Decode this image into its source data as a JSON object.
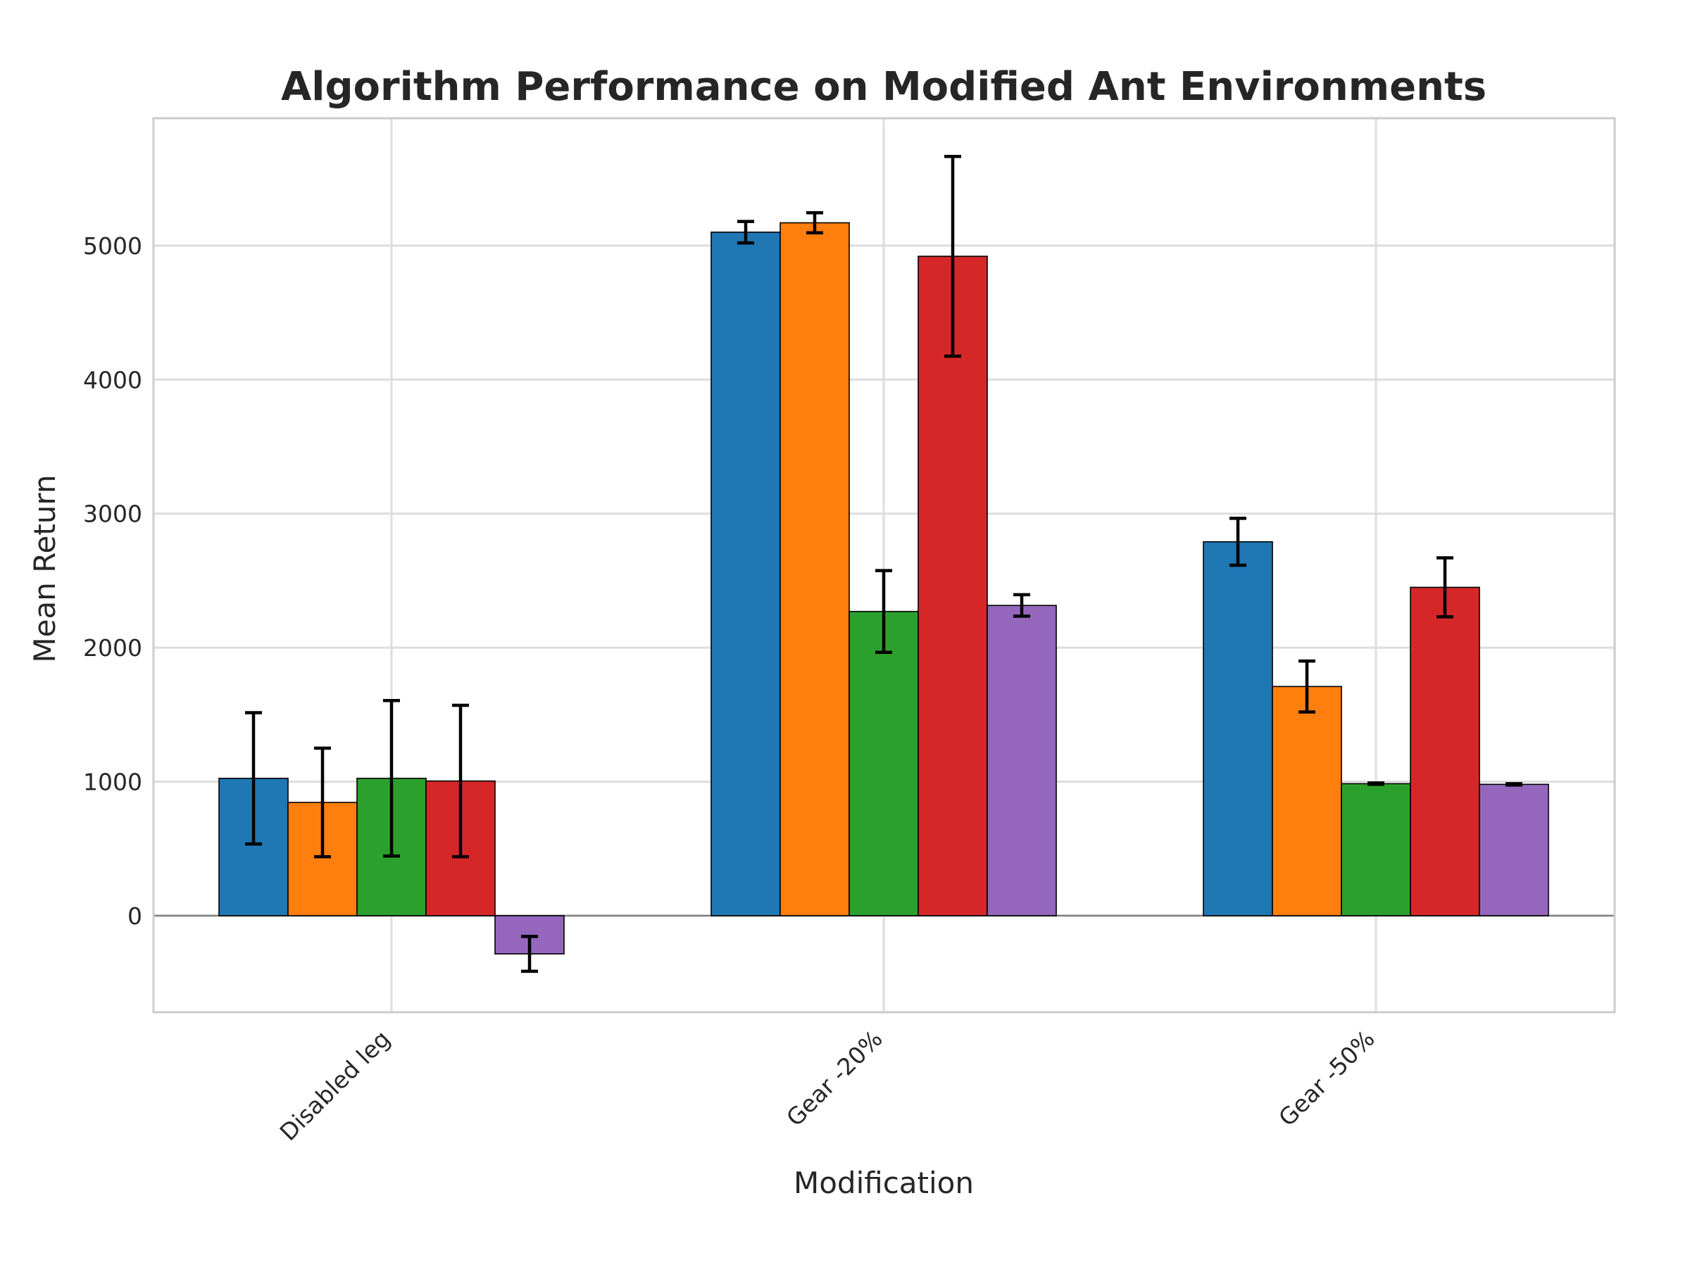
{
  "chart_data": {
    "type": "bar",
    "title": "Algorithm Performance on Modified Ant Environments",
    "xlabel": "Modification",
    "ylabel": "Mean Return",
    "categories": [
      "Disabled leg",
      "Gear -20%",
      "Gear -50%"
    ],
    "ylim": [
      -720,
      5950
    ],
    "yticks": [
      0,
      1000,
      2000,
      3000,
      4000,
      5000
    ],
    "ytick_labels": [
      "0",
      "1000",
      "2000",
      "3000",
      "4000",
      "5000"
    ],
    "grid": true,
    "legend": "none",
    "series": [
      {
        "color": "#1f77b4",
        "values": [
          1025,
          5100,
          2790
        ],
        "errors": [
          490,
          80,
          175
        ]
      },
      {
        "color": "#ff7f0e",
        "values": [
          845,
          5170,
          1710
        ],
        "errors": [
          405,
          75,
          190
        ]
      },
      {
        "color": "#2ca02c",
        "values": [
          1025,
          2270,
          985
        ],
        "errors": [
          580,
          305,
          5
        ]
      },
      {
        "color": "#d62728",
        "values": [
          1005,
          4920,
          2450
        ],
        "errors": [
          565,
          745,
          220
        ]
      },
      {
        "color": "#9467bd",
        "values": [
          -285,
          2315,
          980
        ],
        "errors": [
          130,
          80,
          5
        ]
      }
    ]
  }
}
